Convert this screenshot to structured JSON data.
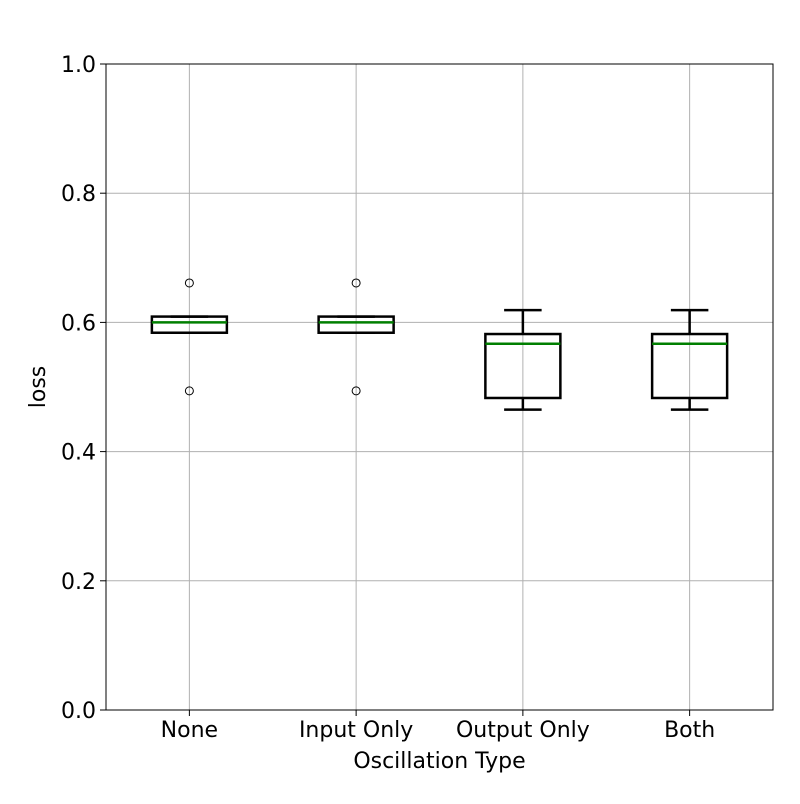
{
  "chart_data": {
    "type": "box",
    "title": "",
    "xlabel": "Oscillation Type",
    "ylabel": "loss",
    "ylim": [
      0,
      1
    ],
    "yticks": [
      0.0,
      0.2,
      0.4,
      0.6,
      0.8,
      1.0
    ],
    "ytick_labels": [
      "0.0",
      "0.2",
      "0.4",
      "0.6",
      "0.8",
      "1.0"
    ],
    "grid": true,
    "categories": [
      "None",
      "Input Only",
      "Output Only",
      "Both"
    ],
    "boxes": [
      {
        "category": "None",
        "whisker_low": 0.584,
        "q1": 0.584,
        "median": 0.6,
        "q3": 0.609,
        "whisker_high": 0.609,
        "outliers": [
          0.661,
          0.494
        ]
      },
      {
        "category": "Input Only",
        "whisker_low": 0.584,
        "q1": 0.584,
        "median": 0.6,
        "q3": 0.609,
        "whisker_high": 0.609,
        "outliers": [
          0.661,
          0.494
        ]
      },
      {
        "category": "Output Only",
        "whisker_low": 0.465,
        "q1": 0.483,
        "median": 0.567,
        "q3": 0.582,
        "whisker_high": 0.619,
        "outliers": []
      },
      {
        "category": "Both",
        "whisker_low": 0.465,
        "q1": 0.483,
        "median": 0.567,
        "q3": 0.582,
        "whisker_high": 0.619,
        "outliers": []
      }
    ],
    "colors": {
      "box": "#000000",
      "median": "#007f00",
      "grid": "#b0b0b0",
      "axes": "#000000"
    }
  }
}
